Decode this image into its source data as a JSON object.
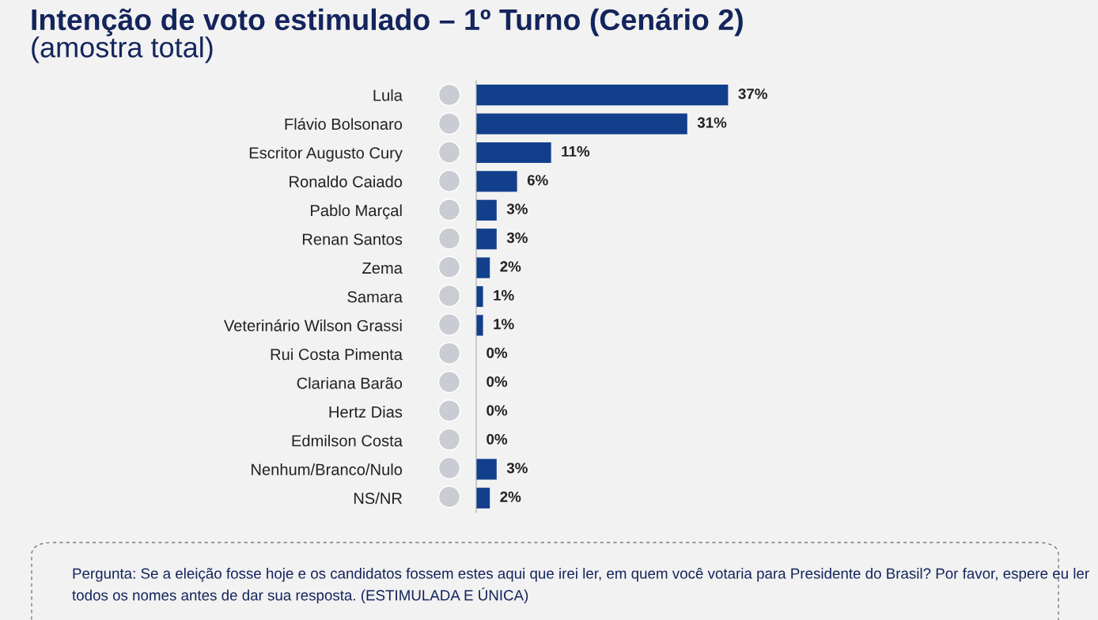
{
  "chart_data": {
    "type": "bar",
    "orientation": "horizontal",
    "title": "Intenção de voto estimulado – 1º Turno (Cenário 2)",
    "subtitle": "(amostra total)",
    "categories": [
      "Lula",
      "Flávio Bolsonaro",
      "Escritor Augusto Cury",
      "Ronaldo Caiado",
      "Pablo Marçal",
      "Renan Santos",
      "Zema",
      "Samara",
      "Veterinário Wilson Grassi",
      "Rui Costa Pimenta",
      "Clariana Barão",
      "Hertz Dias",
      "Edmilson Costa",
      "Nenhum/Branco/Nulo",
      "NS/NR"
    ],
    "values": [
      37,
      31,
      11,
      6,
      3,
      3,
      2,
      1,
      1,
      0,
      0,
      0,
      0,
      3,
      2
    ],
    "value_labels": [
      "37%",
      "31%",
      "11%",
      "6%",
      "3%",
      "3%",
      "2%",
      "1%",
      "1%",
      "0%",
      "0%",
      "0%",
      "0%",
      "3%",
      "2%"
    ],
    "color": "#123f8c",
    "grid": false,
    "legend": false,
    "annotations": [
      "Pergunta: Se a eleição fosse hoje e os candidatos fossem estes aqui que irei ler, em quem você votaria para Presidente do Brasil? Por favor, espere eu ler todos os nomes antes de dar sua resposta. (ESTIMULADA E ÚNICA)"
    ]
  }
}
